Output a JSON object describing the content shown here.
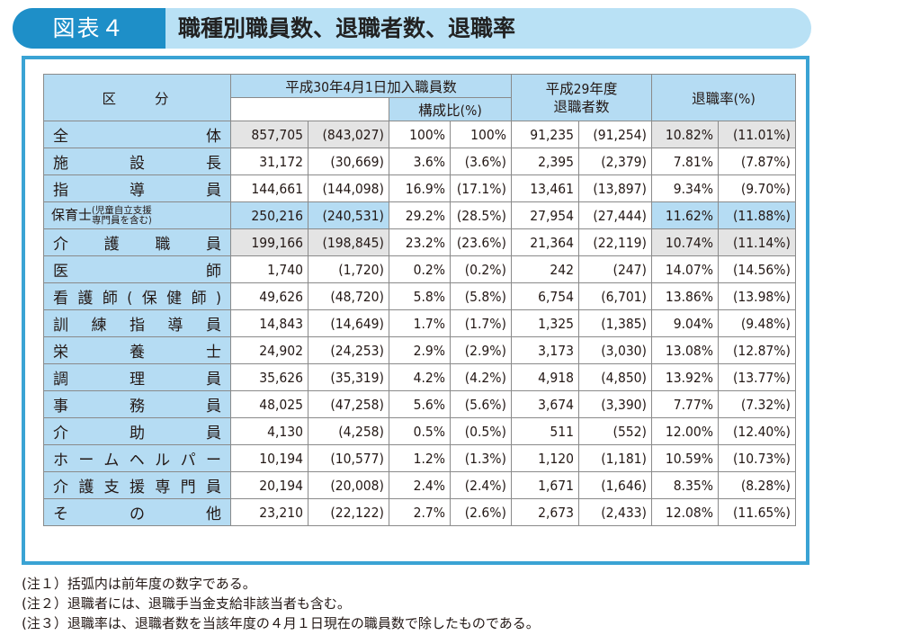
{
  "title": {
    "label": "図表４",
    "text": "職種別職員数、退職者数、退職率"
  },
  "table": {
    "head": {
      "category": "区　　分",
      "joined": "平成30年4月1日加入職員数",
      "ratio": "構成比(%)",
      "retirees_l1": "平成29年度",
      "retirees_l2": "退職者数",
      "rate": "退職率(%)"
    },
    "rows": [
      {
        "cat": "全体",
        "n": "857,705",
        "np": "(843,027)",
        "r": "100%",
        "rp": "100%",
        "ret": "91,235",
        "retp": "(91,254)",
        "rate": "10.82%",
        "ratep": "(11.01%)"
      },
      {
        "cat": "施設長",
        "n": "31,172",
        "np": "(30,669)",
        "r": "3.6%",
        "rp": "(3.6%)",
        "ret": "2,395",
        "retp": "(2,379)",
        "rate": "7.81%",
        "ratep": "(7.87%)"
      },
      {
        "cat": "指導員",
        "n": "144,661",
        "np": "(144,098)",
        "r": "16.9%",
        "rp": "(17.1%)",
        "ret": "13,461",
        "retp": "(13,897)",
        "rate": "9.34%",
        "ratep": "(9.70%)"
      },
      {
        "cat": "保育士",
        "cat_note1": "(児童自立支援",
        "cat_note2": "専門員を含む)",
        "n": "250,216",
        "np": "(240,531)",
        "r": "29.2%",
        "rp": "(28.5%)",
        "ret": "27,954",
        "retp": "(27,444)",
        "rate": "11.62%",
        "ratep": "(11.88%)"
      },
      {
        "cat": "介護職員",
        "n": "199,166",
        "np": "(198,845)",
        "r": "23.2%",
        "rp": "(23.6%)",
        "ret": "21,364",
        "retp": "(22,119)",
        "rate": "10.74%",
        "ratep": "(11.14%)"
      },
      {
        "cat": "医師",
        "n": "1,740",
        "np": "(1,720)",
        "r": "0.2%",
        "rp": "(0.2%)",
        "ret": "242",
        "retp": "(247)",
        "rate": "14.07%",
        "ratep": "(14.56%)"
      },
      {
        "cat": "看護師(保健師)",
        "n": "49,626",
        "np": "(48,720)",
        "r": "5.8%",
        "rp": "(5.8%)",
        "ret": "6,754",
        "retp": "(6,701)",
        "rate": "13.86%",
        "ratep": "(13.98%)"
      },
      {
        "cat": "訓練指導員",
        "n": "14,843",
        "np": "(14,649)",
        "r": "1.7%",
        "rp": "(1.7%)",
        "ret": "1,325",
        "retp": "(1,385)",
        "rate": "9.04%",
        "ratep": "(9.48%)"
      },
      {
        "cat": "栄養士",
        "n": "24,902",
        "np": "(24,253)",
        "r": "2.9%",
        "rp": "(2.9%)",
        "ret": "3,173",
        "retp": "(3,030)",
        "rate": "13.08%",
        "ratep": "(12.87%)"
      },
      {
        "cat": "調理員",
        "n": "35,626",
        "np": "(35,319)",
        "r": "4.2%",
        "rp": "(4.2%)",
        "ret": "4,918",
        "retp": "(4,850)",
        "rate": "13.92%",
        "ratep": "(13.77%)"
      },
      {
        "cat": "事務員",
        "n": "48,025",
        "np": "(47,258)",
        "r": "5.6%",
        "rp": "(5.6%)",
        "ret": "3,674",
        "retp": "(3,390)",
        "rate": "7.77%",
        "ratep": "(7.32%)"
      },
      {
        "cat": "介助員",
        "n": "4,130",
        "np": "(4,258)",
        "r": "0.5%",
        "rp": "(0.5%)",
        "ret": "511",
        "retp": "(552)",
        "rate": "12.00%",
        "ratep": "(12.40%)"
      },
      {
        "cat": "ホームヘルパー",
        "n": "10,194",
        "np": "(10,577)",
        "r": "1.2%",
        "rp": "(1.3%)",
        "ret": "1,120",
        "retp": "(1,181)",
        "rate": "10.59%",
        "ratep": "(10.73%)"
      },
      {
        "cat": "介護支援専門員",
        "n": "20,194",
        "np": "(20,008)",
        "r": "2.4%",
        "rp": "(2.4%)",
        "ret": "1,671",
        "retp": "(1,646)",
        "rate": "8.35%",
        "ratep": "(8.28%)"
      },
      {
        "cat": "その他",
        "n": "23,210",
        "np": "(22,122)",
        "r": "2.7%",
        "rp": "(2.6%)",
        "ret": "2,673",
        "retp": "(2,433)",
        "rate": "12.08%",
        "ratep": "(11.65%)"
      }
    ]
  },
  "notes": [
    "(注１）括弧内は前年度の数字である。",
    "(注２）退職者には、退職手当金支給非該当者も含む。",
    "(注３）退職率は、退職者数を当該年度の４月１日現在の職員数で除したものである。"
  ]
}
